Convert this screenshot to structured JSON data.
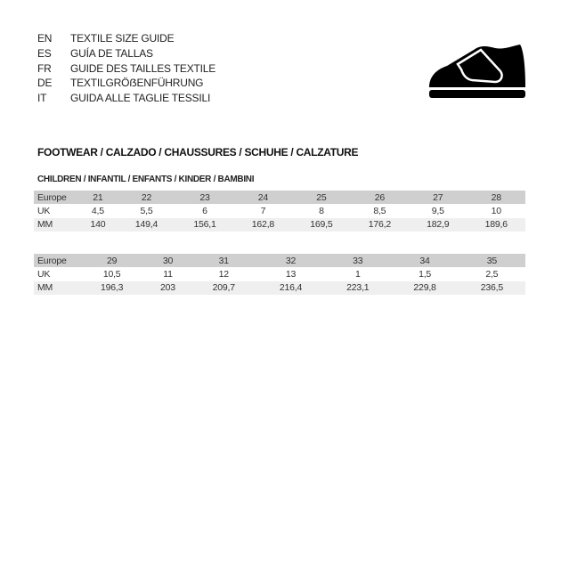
{
  "languages": [
    {
      "code": "EN",
      "title": "TEXTILE SIZE GUIDE"
    },
    {
      "code": "ES",
      "title": "GUÍA DE TALLAS"
    },
    {
      "code": "FR",
      "title": "GUIDE DES TAILLES TEXTILE"
    },
    {
      "code": "DE",
      "title": "TEXTILGRÖẞENFÜHRUNG"
    },
    {
      "code": "IT",
      "title": "GUIDA ALLE TAGLIE TESSILI"
    }
  ],
  "icon": "shoe-velcro-icon",
  "section_title": "FOOTWEAR / CALZADO / CHAUSSURES / SCHUHE / CALZATURE",
  "subsection_title": "CHILDREN / INFANTIL / ENFANTS / KINDER / BAMBINI",
  "tables": [
    {
      "rows": [
        {
          "label": "Europe",
          "values": [
            "21",
            "22",
            "23",
            "24",
            "25",
            "26",
            "27",
            "28"
          ]
        },
        {
          "label": "UK",
          "values": [
            "4,5",
            "5,5",
            "6",
            "7",
            "8",
            "8,5",
            "9,5",
            "10"
          ]
        },
        {
          "label": "MM",
          "values": [
            "140",
            "149,4",
            "156,1",
            "162,8",
            "169,5",
            "176,2",
            "182,9",
            "189,6"
          ]
        }
      ]
    },
    {
      "rows": [
        {
          "label": "Europe",
          "values": [
            "29",
            "30",
            "31",
            "32",
            "33",
            "34",
            "35",
            ""
          ]
        },
        {
          "label": "UK",
          "values": [
            "10,5",
            "11",
            "12",
            "13",
            "1",
            "1,5",
            "2,5",
            ""
          ]
        },
        {
          "label": "MM",
          "values": [
            "196,3",
            "203",
            "209,7",
            "216,4",
            "223,1",
            "229,8",
            "236,5",
            ""
          ]
        }
      ]
    }
  ]
}
